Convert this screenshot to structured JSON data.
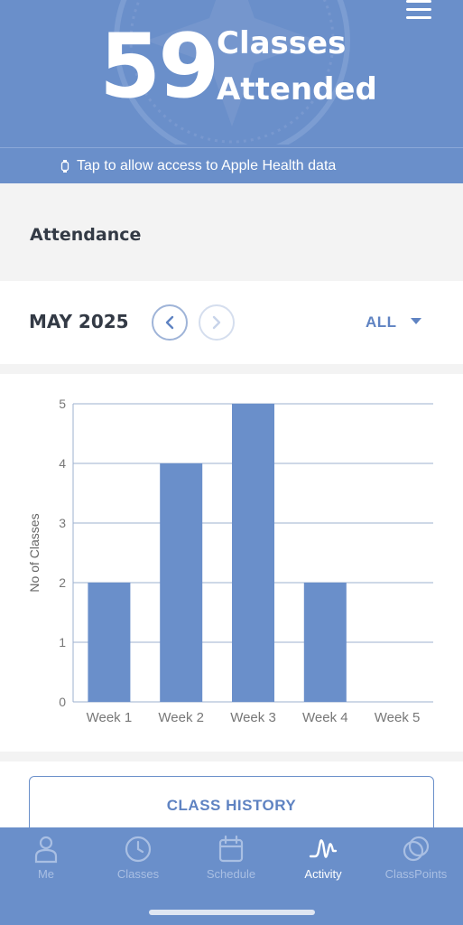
{
  "header": {
    "count": "59",
    "count_label_line1": "Classes",
    "count_label_line2": "Attended",
    "health_prompt": "Tap to allow access to Apple Health data"
  },
  "attendance": {
    "title": "Attendance"
  },
  "period": {
    "month": "MAY 2025",
    "filter": "ALL"
  },
  "chart_data": {
    "type": "bar",
    "categories": [
      "Week 1",
      "Week 2",
      "Week 3",
      "Week 4",
      "Week 5"
    ],
    "values": [
      2,
      4,
      5,
      2,
      0
    ],
    "ylabel": "No of Classes",
    "ylim": [
      0,
      5
    ],
    "yticks": [
      0,
      1,
      2,
      3,
      4,
      5
    ],
    "grid": true,
    "bar_color": "#6a8fca"
  },
  "history": {
    "button_label": "CLASS HISTORY"
  },
  "tabs": [
    {
      "label": "Me",
      "icon": "person-icon"
    },
    {
      "label": "Classes",
      "icon": "clock-icon"
    },
    {
      "label": "Schedule",
      "icon": "calendar-icon"
    },
    {
      "label": "Activity",
      "icon": "activity-icon",
      "active": true
    },
    {
      "label": "ClassPoints",
      "icon": "points-icon"
    }
  ],
  "colors": {
    "brand": "#6a8fca",
    "accent_text": "#5f83c2"
  }
}
